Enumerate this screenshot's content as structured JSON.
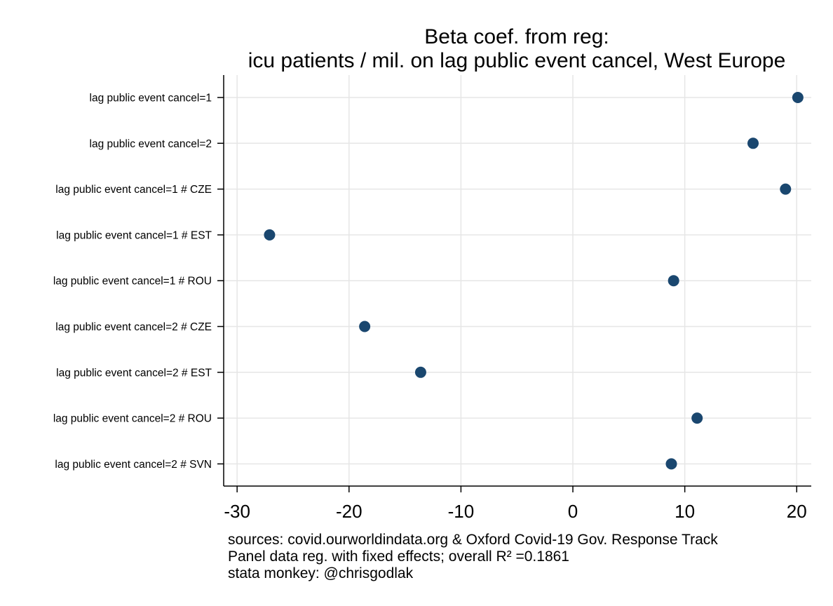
{
  "chart_data": {
    "type": "scatter",
    "orientation": "horizontal",
    "title_lines": [
      "Beta coef. from reg:",
      "icu patients / mil. on lag public event cancel, West Europe"
    ],
    "xlabel": "",
    "ylabel": "",
    "xlim": [
      -31.2,
      21.3
    ],
    "xticks": [
      -30,
      -20,
      -10,
      0,
      10,
      20
    ],
    "grid": true,
    "legend": "none",
    "marker_color": "#1a476f",
    "categories": [
      "lag public event cancel=1",
      "lag public event cancel=2",
      "lag public event cancel=1 # CZE",
      "lag public event cancel=1 # EST",
      "lag public event cancel=1 # ROU",
      "lag public event cancel=2 # CZE",
      "lag public event cancel=2 # EST",
      "lag public event cancel=2 # ROU",
      "lag public event cancel=2 # SVN"
    ],
    "values": [
      20.1,
      16.1,
      19.0,
      -27.1,
      9.0,
      -18.6,
      -13.6,
      11.1,
      8.8
    ],
    "notes": [
      "sources: covid.ourworldindata.org & Oxford Covid-19 Gov. Response Track",
      "Panel data reg. with fixed effects; overall R² =0.1861",
      "stata monkey: @chrisgodlak"
    ]
  }
}
